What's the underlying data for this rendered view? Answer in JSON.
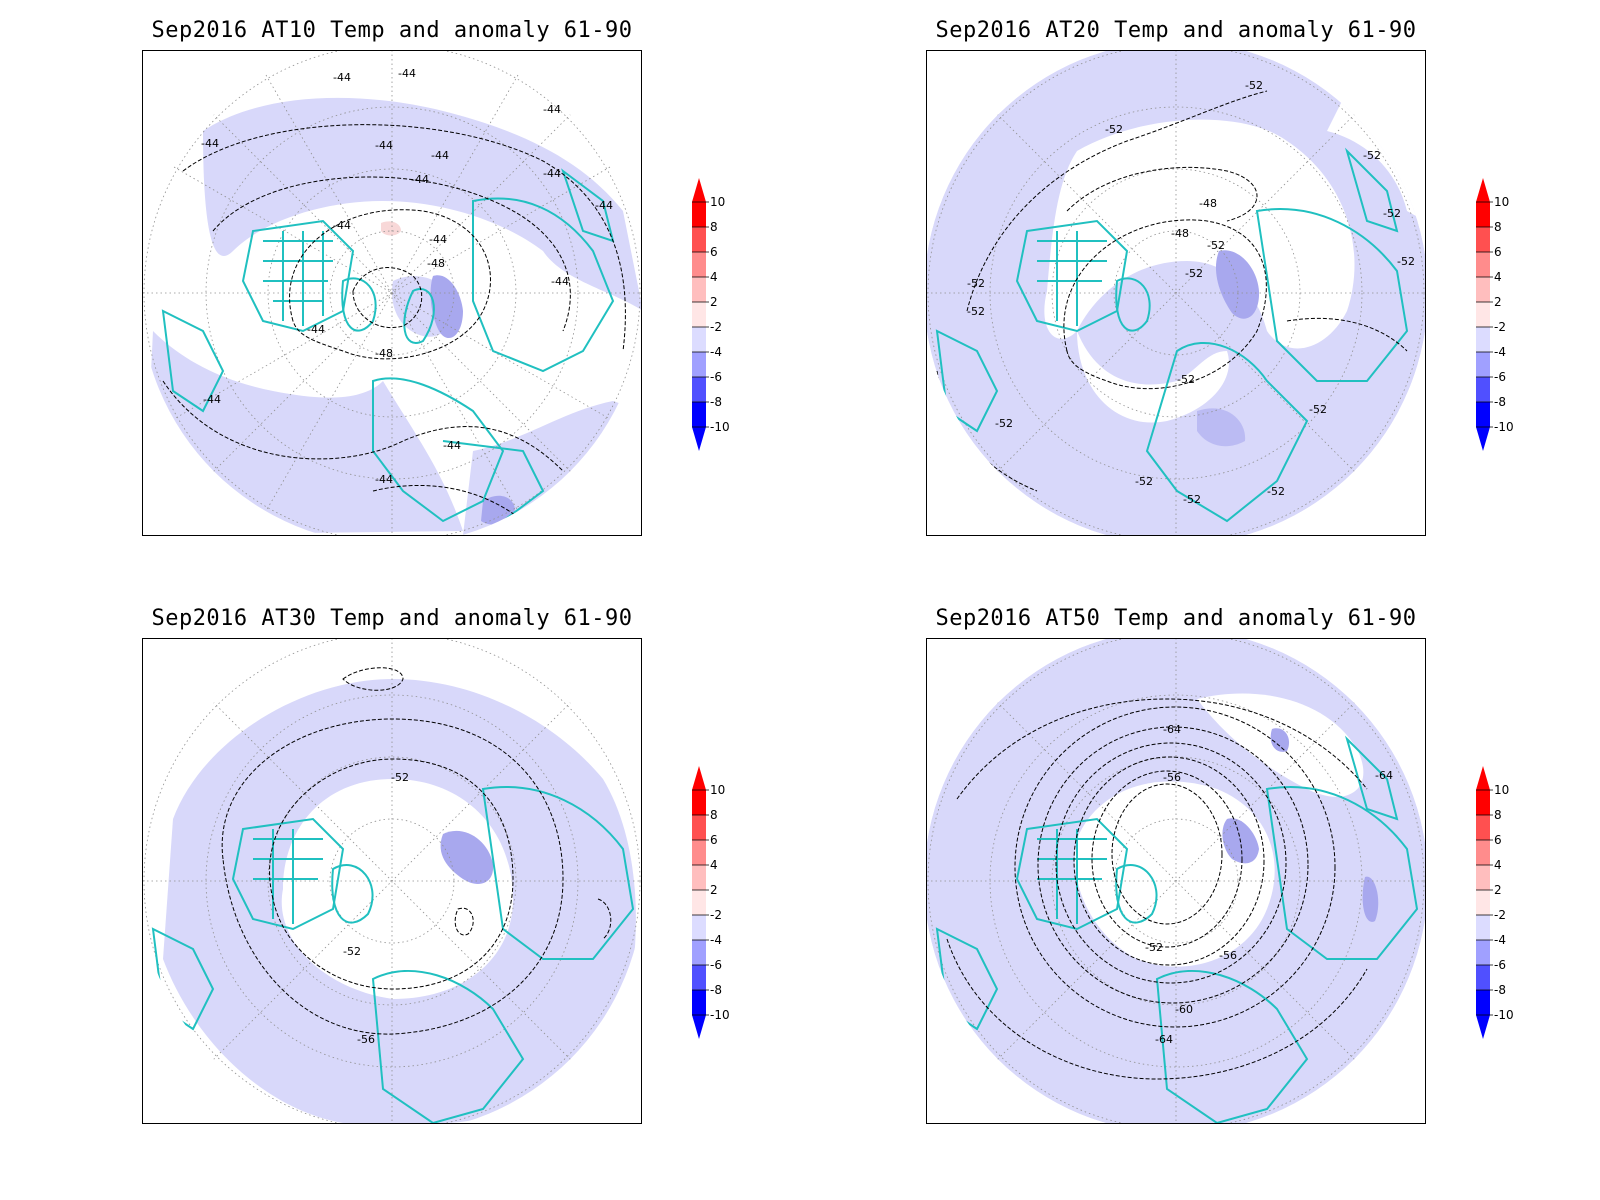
{
  "panels": [
    {
      "title": "Sep2016 AT10 Temp and anomaly 61-90",
      "contour_labels": [
        "-44",
        "-44",
        "-44",
        "-44",
        "-44",
        "-44",
        "-44",
        "-44",
        "-44",
        "-44",
        "-44",
        "-44",
        "-44",
        "-48",
        "-48",
        "-44",
        "-44",
        "-44"
      ]
    },
    {
      "title": "Sep2016 AT20 Temp and anomaly 61-90",
      "contour_labels": [
        "-52",
        "-52",
        "-52",
        "-52",
        "-48",
        "-48",
        "-52",
        "-52",
        "-52",
        "-52",
        "-52",
        "-52",
        "-52",
        "-52",
        "-52",
        "-52",
        "-52"
      ]
    },
    {
      "title": "Sep2016 AT30 Temp and anomaly 61-90",
      "contour_labels": [
        "-52",
        "-52",
        "-56"
      ]
    },
    {
      "title": "Sep2016 AT50 Temp and anomaly 61-90",
      "contour_labels": [
        "-64",
        "-56",
        "-52",
        "-56",
        "-60",
        "-64",
        "-64"
      ]
    }
  ],
  "colorbar": {
    "levels": [
      "10",
      "8",
      "6",
      "4",
      "2",
      "-2",
      "-4",
      "-6",
      "-8",
      "-10"
    ],
    "colors": [
      "#ff0000",
      "#ff5050",
      "#ff8c8c",
      "#ffbebe",
      "#ffe6e6",
      "#ffffff",
      "#dcdcff",
      "#a0a0ff",
      "#5050ff",
      "#0000ff"
    ],
    "unit": ""
  },
  "styles": {
    "coast_color": "#20c0c0",
    "anomaly_light_blue": "#d8d8fa",
    "anomaly_mid_blue": "#a8a8ee",
    "anomaly_light_red": "#f8d8d8"
  }
}
